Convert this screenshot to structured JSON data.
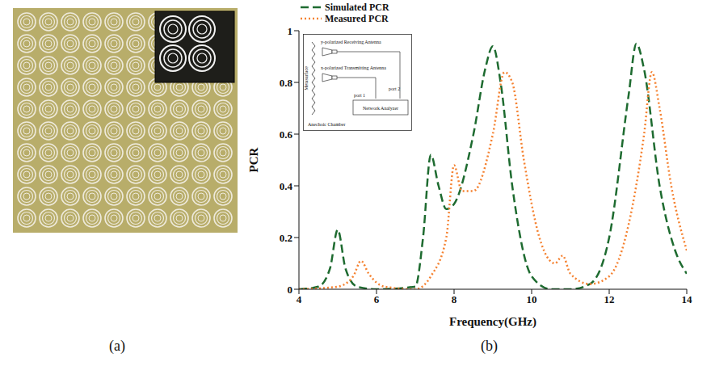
{
  "panels": [
    "(a)",
    "(b)"
  ],
  "chart_data": {
    "type": "line",
    "xlabel": "Frequency(GHz)",
    "ylabel": "PCR",
    "xlim": [
      4,
      14
    ],
    "xticks": [
      4,
      6,
      8,
      10,
      12,
      14
    ],
    "ylim": [
      0,
      1
    ],
    "yticks": [
      0,
      0.2,
      0.4,
      0.6,
      0.8,
      1
    ],
    "grid": false,
    "legend": "top left",
    "series": [
      {
        "name": "Simulated PCR",
        "color": "#1e6b30",
        "line_style": "dashed",
        "x": [
          4,
          4.5,
          4.8,
          5.0,
          5.2,
          5.5,
          6,
          7,
          7.2,
          7.4,
          7.6,
          7.8,
          8,
          8.5,
          8.8,
          9.0,
          9.2,
          9.5,
          10,
          10.5,
          11,
          11.5,
          12,
          12.5,
          12.7,
          12.9,
          13.3,
          13.7,
          14
        ],
        "values": [
          0,
          0.01,
          0.08,
          0.23,
          0.08,
          0.01,
          0,
          0.01,
          0.2,
          0.52,
          0.4,
          0.31,
          0.33,
          0.6,
          0.85,
          0.94,
          0.8,
          0.4,
          0.05,
          0,
          0,
          0.02,
          0.2,
          0.75,
          0.95,
          0.85,
          0.4,
          0.15,
          0.06
        ]
      },
      {
        "name": "Measured PCR",
        "color": "#f58231",
        "line_style": "dotted",
        "x": [
          4,
          5,
          5.4,
          5.6,
          5.8,
          6.2,
          7,
          7.4,
          7.8,
          8.0,
          8.2,
          8.5,
          9.0,
          9.3,
          9.5,
          9.8,
          10.2,
          10.6,
          10.8,
          11,
          11.5,
          12,
          12.5,
          12.9,
          13.1,
          13.3,
          13.6,
          14
        ],
        "values": [
          0,
          0.01,
          0.05,
          0.11,
          0.06,
          0.01,
          0,
          0.05,
          0.2,
          0.48,
          0.38,
          0.38,
          0.6,
          0.84,
          0.8,
          0.5,
          0.2,
          0.1,
          0.13,
          0.06,
          0.02,
          0.05,
          0.25,
          0.6,
          0.84,
          0.7,
          0.4,
          0.15
        ]
      }
    ],
    "inset": {
      "metasurface": "Metasurface",
      "receiver": "y-polarized Receiving Antenna",
      "transmitter": "x-polarized Transmitting Antenna",
      "port1": "port 1",
      "port2": "port 2",
      "analyzer": "Network Analyzer",
      "chamber": "Anechoic Chamber"
    }
  }
}
